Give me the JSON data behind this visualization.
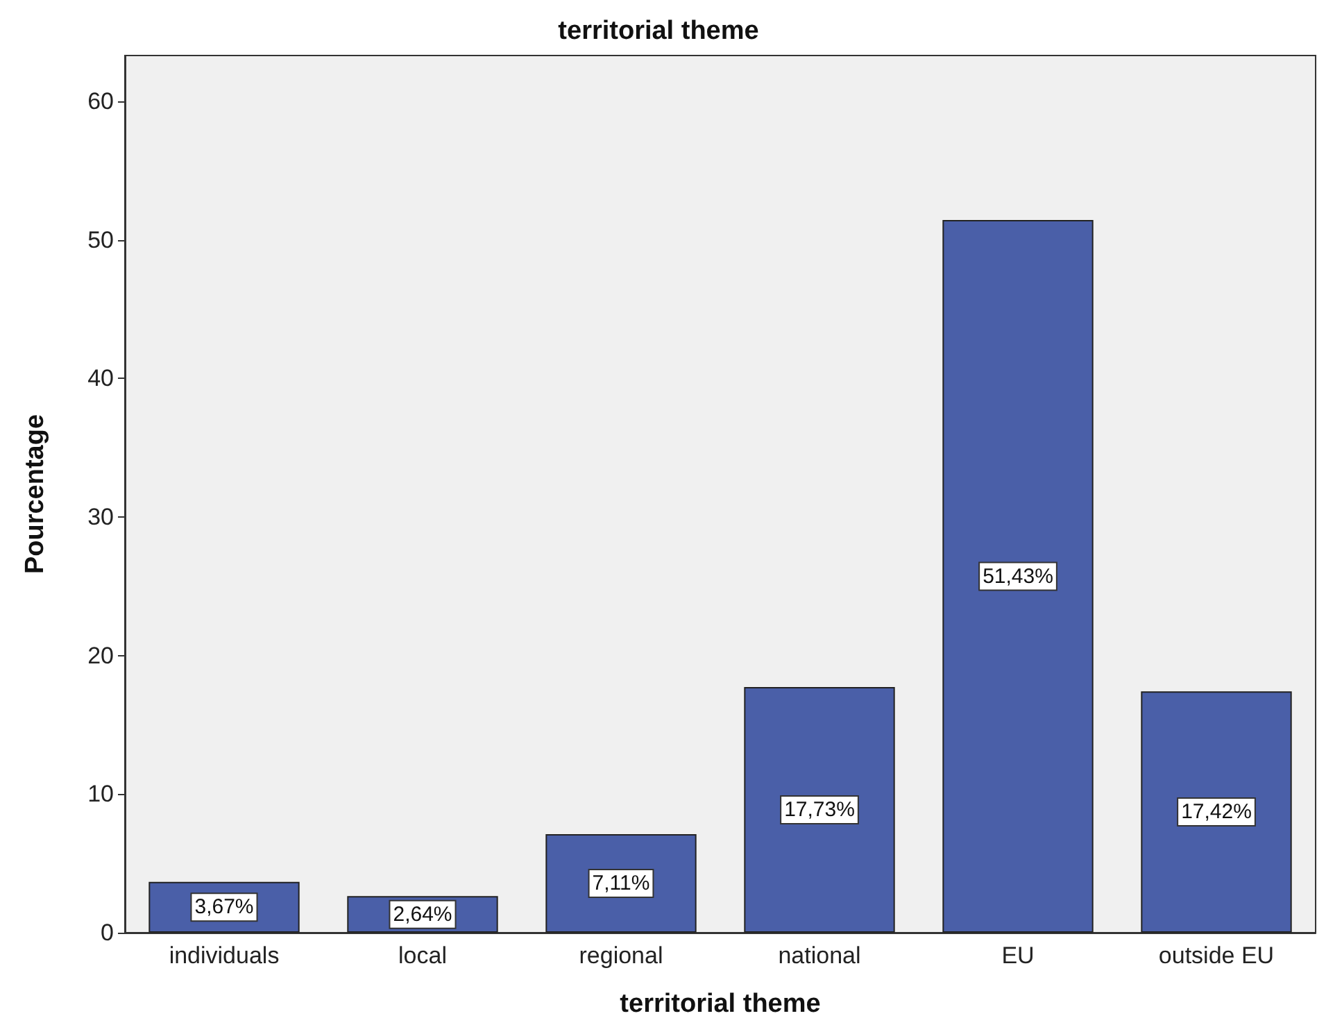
{
  "chart_data": {
    "type": "bar",
    "title": "territorial theme",
    "xlabel": "territorial theme",
    "ylabel": "Pourcentage",
    "categories": [
      "individuals",
      "local",
      "regional",
      "national",
      "EU",
      "outside EU"
    ],
    "values": [
      3.67,
      2.64,
      7.11,
      17.73,
      51.43,
      17.42
    ],
    "value_labels": [
      "3,67%",
      "2,64%",
      "7,11%",
      "17,73%",
      "51,43%",
      "17,42%"
    ],
    "color": "#4a5fa8",
    "ylim": [
      0,
      63.3
    ],
    "yticks": [
      0,
      10,
      20,
      30,
      40,
      50,
      60
    ],
    "grid": false
  }
}
